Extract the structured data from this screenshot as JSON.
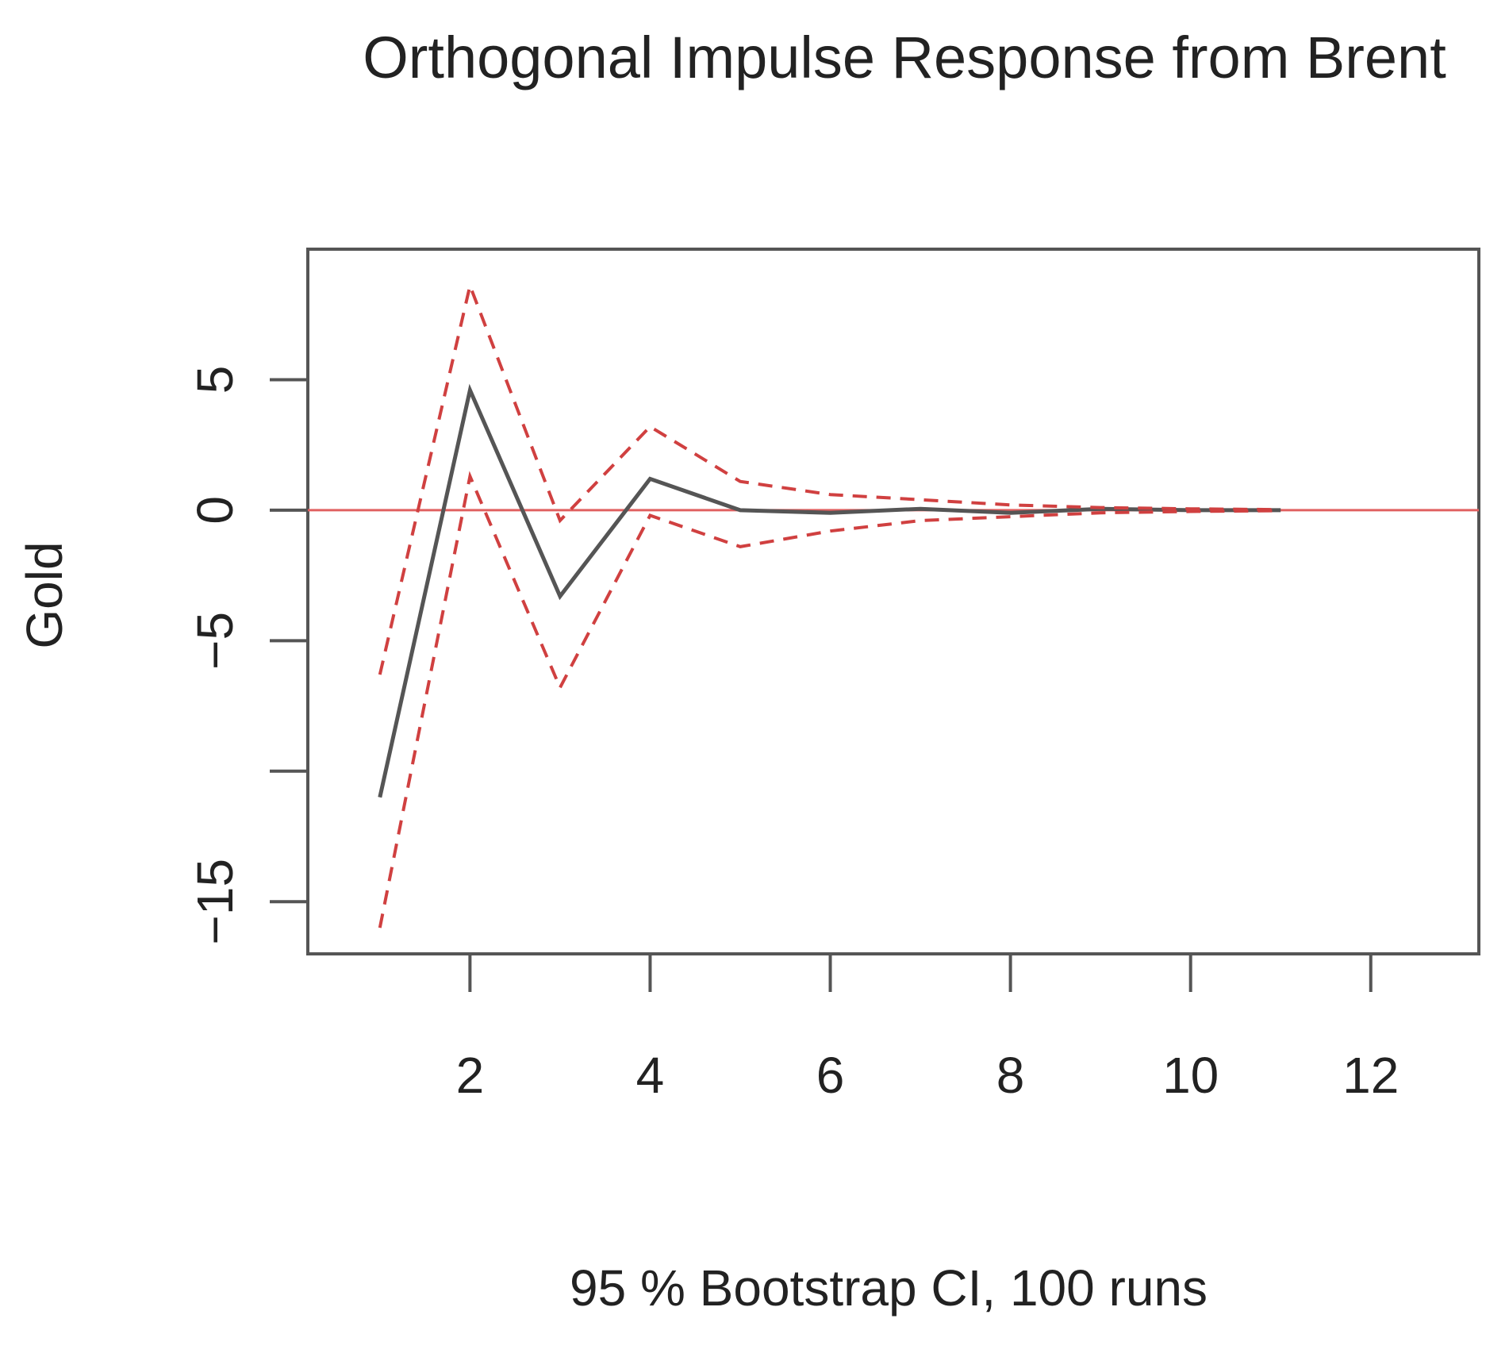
{
  "chart_data": {
    "type": "line",
    "title": "Orthogonal Impulse Response from Brent",
    "ylabel": "Gold",
    "xlabel": "95 % Bootstrap CI,  100 runs",
    "x": [
      1,
      2,
      3,
      4,
      5,
      6,
      7,
      8,
      9,
      10,
      11
    ],
    "xlim": [
      0.2,
      13.2
    ],
    "ylim": [
      -17,
      10
    ],
    "x_ticks": [
      2,
      4,
      6,
      8,
      10,
      12
    ],
    "x_tick_labels": [
      "2",
      "4",
      "6",
      "8",
      "10",
      "12"
    ],
    "y_ticks": [
      -15,
      -10,
      -5,
      0,
      5
    ],
    "y_tick_labels": [
      "−15",
      "",
      "−5",
      "0",
      "5"
    ],
    "grid": false,
    "legend": "none",
    "zero_line": {
      "y": 0,
      "color": "#e06060"
    },
    "series": [
      {
        "values": [
          -11.0,
          4.6,
          -3.3,
          1.2,
          0.0,
          -0.1,
          0.05,
          -0.1,
          0.05,
          0.0,
          0.0
        ],
        "color": "#555555",
        "style": "solid"
      },
      {
        "values": [
          -6.3,
          8.6,
          -0.4,
          3.2,
          1.1,
          0.6,
          0.4,
          0.2,
          0.1,
          0.05,
          0.02
        ],
        "color": "#d04040",
        "style": "dashed"
      },
      {
        "values": [
          -16.0,
          1.3,
          -6.8,
          -0.2,
          -1.4,
          -0.8,
          -0.4,
          -0.25,
          -0.1,
          -0.05,
          -0.02
        ],
        "color": "#d04040",
        "style": "dashed"
      }
    ]
  }
}
